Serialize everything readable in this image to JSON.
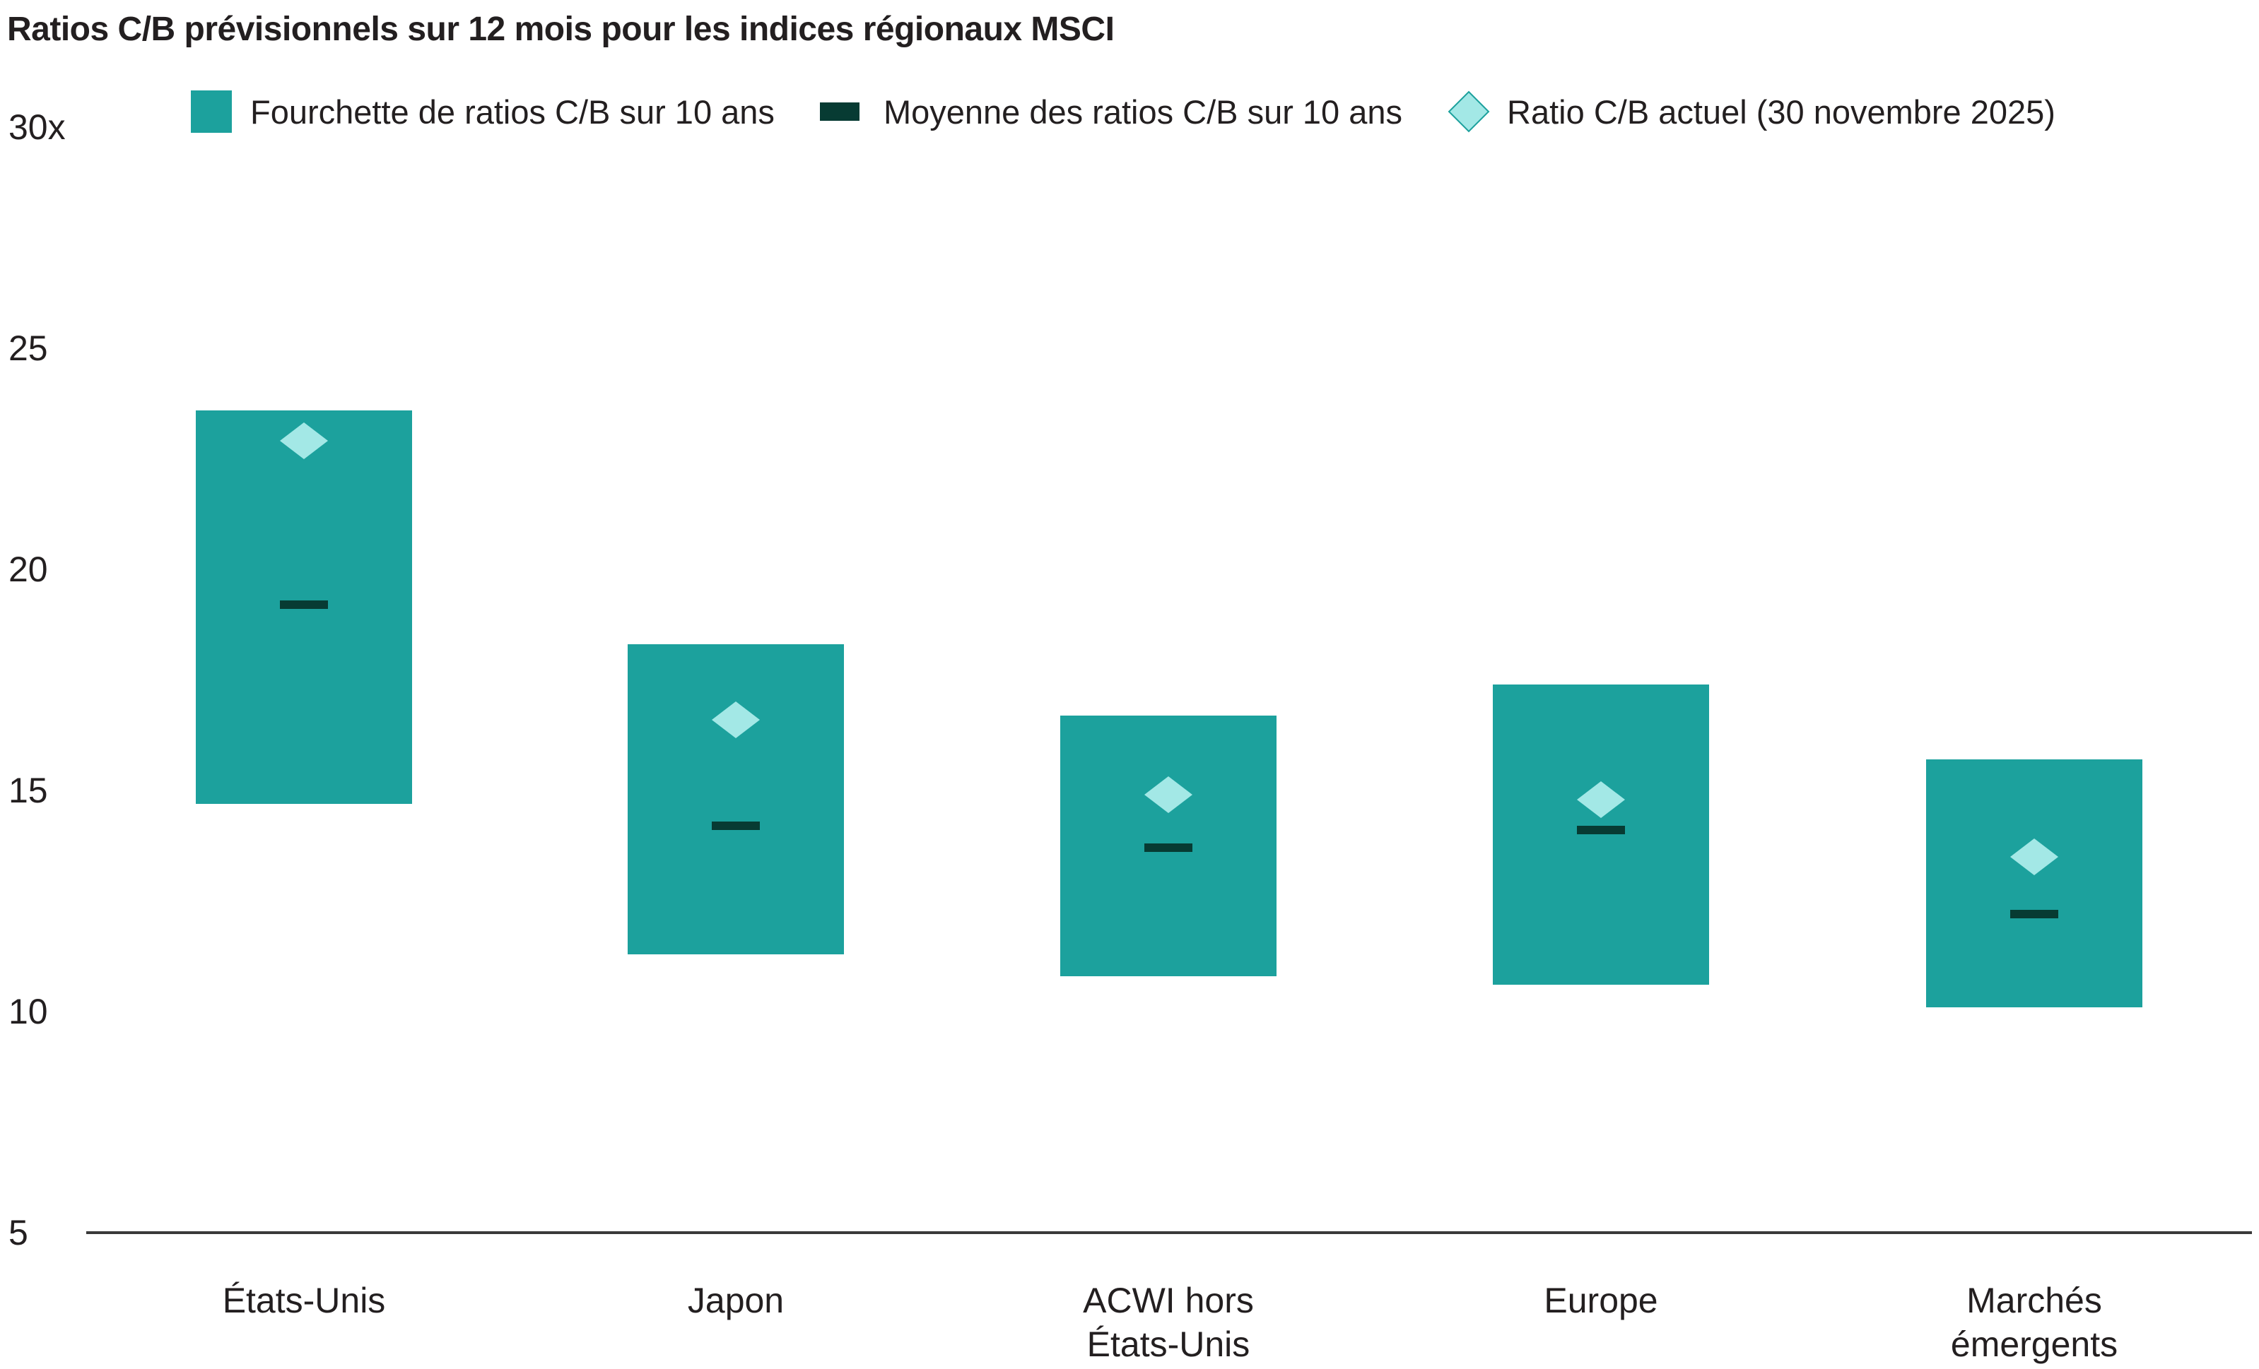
{
  "title": "Ratios C/B prévisionnels sur 12 mois pour les indices régionaux MSCI",
  "legend": {
    "range_label": "Fourchette de ratios C/B sur 10 ans",
    "mean_label": "Moyenne des ratios C/B sur 10 ans",
    "current_label": "Ratio C/B actuel (30 novembre 2025)"
  },
  "colors": {
    "range": "#1ca19d",
    "mean": "#073b33",
    "current": "#a3e8e6",
    "current_stroke": "#1ca19d",
    "axis": "#3a3a3a"
  },
  "y_ticks": [
    {
      "value": 30,
      "label": "30x"
    },
    {
      "value": 25,
      "label": "25"
    },
    {
      "value": 20,
      "label": "20"
    },
    {
      "value": 15,
      "label": "15"
    },
    {
      "value": 10,
      "label": "10"
    },
    {
      "value": 5,
      "label": "5"
    }
  ],
  "chart_data": {
    "type": "bar",
    "title": "Ratios C/B prévisionnels sur 12 mois pour les indices régionaux MSCI",
    "xlabel": "",
    "ylabel": "",
    "ylim": [
      5,
      30
    ],
    "grid": false,
    "legend_position": "top",
    "categories": [
      "États-Unis",
      "Japon",
      "ACWI hors États-Unis",
      "Europe",
      "Marchés émergents"
    ],
    "series": [
      {
        "name": "Fourchette de ratios C/B sur 10 ans (min)",
        "values": [
          14.7,
          11.3,
          10.8,
          10.6,
          10.1
        ]
      },
      {
        "name": "Fourchette de ratios C/B sur 10 ans (max)",
        "values": [
          23.6,
          18.3,
          16.7,
          17.4,
          15.7
        ]
      },
      {
        "name": "Moyenne des ratios C/B sur 10 ans",
        "values": [
          19.2,
          14.2,
          13.7,
          14.1,
          12.2
        ]
      },
      {
        "name": "Ratio C/B actuel (30 novembre 2025)",
        "values": [
          22.9,
          16.6,
          14.9,
          14.8,
          13.5
        ]
      }
    ]
  },
  "x_labels": [
    "États-Unis",
    "Japon",
    "ACWI hors\nÉtats-Unis",
    "Europe",
    "Marchés\némergents"
  ]
}
